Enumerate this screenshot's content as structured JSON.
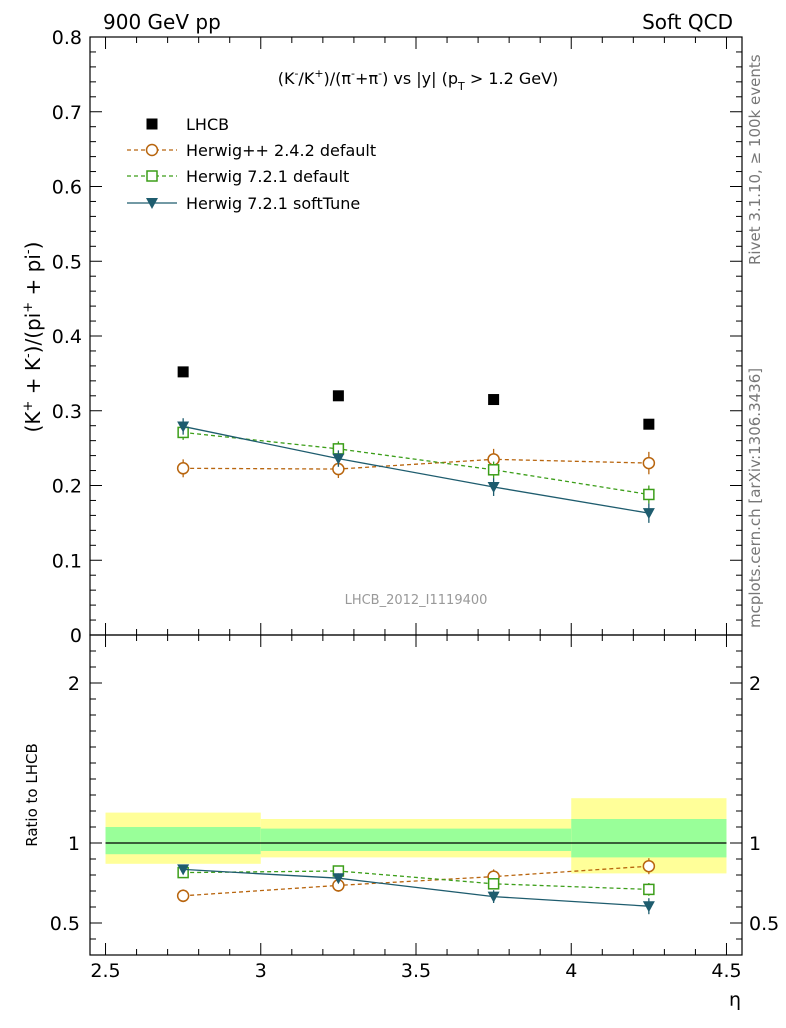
{
  "header": {
    "left": "900 GeV pp",
    "right": "Soft QCD"
  },
  "side_labels": {
    "rivet": "Rivet 3.1.10, ≥ 100k events",
    "mcplots": "mcplots.cern.ch [arXiv:1306.3436]"
  },
  "analysis_id": "LHCB_2012_I1119400",
  "colors": {
    "data": "#000000",
    "herwigpp": "#b8650e",
    "herwig721": "#3c9e19",
    "softtune": "#1e5c6e",
    "band_inner": "#99ff99",
    "band_outer": "#ffff99"
  },
  "chart_data": [
    {
      "type": "scatter",
      "panel": "main",
      "title_parts": {
        "a": "(K",
        "a_sup": "-",
        "b": "/K",
        "b_sup": "+",
        "c": ")/(π",
        "c_sup": "-",
        "d": "+π",
        "d_sup": "-",
        "e": ") vs |y| (p",
        "e_sub": "T",
        "f": " > 1.2 GeV)"
      },
      "ylabel_parts": {
        "a": "(K",
        "a_sup": "+",
        "b": " + K",
        "b_sup": "-",
        "c": ")/(pi",
        "c_sup": "+",
        "d": " + pi",
        "d_sup": "-",
        "e": ")"
      },
      "xlim": [
        2.45,
        4.55
      ],
      "ylim": [
        0,
        0.8
      ],
      "yticks": [
        "0",
        "0.1",
        "0.2",
        "0.3",
        "0.4",
        "0.5",
        "0.6",
        "0.7",
        "0.8"
      ],
      "x": [
        2.75,
        3.25,
        3.75,
        4.25
      ],
      "series": [
        {
          "name": "LHCB",
          "key": "data",
          "marker": "square-filled",
          "values": [
            0.352,
            0.32,
            0.315,
            0.282
          ],
          "errors": [
            0.004,
            0.004,
            0.004,
            0.004
          ]
        },
        {
          "name": "Herwig++ 2.4.2 default",
          "key": "herwigpp",
          "marker": "circle-open",
          "line": "dashed",
          "values": [
            0.223,
            0.222,
            0.235,
            0.23
          ],
          "errors": [
            0.012,
            0.012,
            0.014,
            0.015
          ]
        },
        {
          "name": "Herwig 7.2.1 default",
          "key": "herwig721",
          "marker": "square-open",
          "line": "dashed",
          "values": [
            0.271,
            0.249,
            0.221,
            0.188
          ],
          "errors": [
            0.01,
            0.01,
            0.011,
            0.012
          ]
        },
        {
          "name": "Herwig 7.2.1 softTune",
          "key": "softtune",
          "marker": "triangle-down-filled",
          "line": "solid",
          "values": [
            0.279,
            0.236,
            0.198,
            0.163
          ],
          "errors": [
            0.011,
            0.011,
            0.012,
            0.013
          ]
        }
      ]
    },
    {
      "type": "scatter",
      "panel": "ratio",
      "ylabel": "Ratio to LHCB",
      "xlabel": "η",
      "xlim": [
        2.45,
        4.55
      ],
      "ylim": [
        0.3,
        2.3
      ],
      "yticks": [
        "0.5",
        "1",
        "2"
      ],
      "xticks": [
        "2.5",
        "3",
        "3.5",
        "4",
        "4.5"
      ],
      "x": [
        2.75,
        3.25,
        3.75,
        4.25
      ],
      "bands": [
        {
          "x0": 2.5,
          "x1": 3.0,
          "inner": [
            0.93,
            1.1
          ],
          "outer": [
            0.87,
            1.19
          ]
        },
        {
          "x0": 3.0,
          "x1": 4.0,
          "inner": [
            0.95,
            1.09
          ],
          "outer": [
            0.91,
            1.15
          ]
        },
        {
          "x0": 4.0,
          "x1": 4.5,
          "inner": [
            0.91,
            1.15
          ],
          "outer": [
            0.81,
            1.28
          ]
        }
      ],
      "series": [
        {
          "name": "Herwig++ 2.4.2 default",
          "key": "herwigpp",
          "marker": "circle-open",
          "line": "dashed",
          "values": [
            0.67,
            0.735,
            0.79,
            0.855
          ],
          "errors": [
            0.04,
            0.04,
            0.045,
            0.05
          ]
        },
        {
          "name": "Herwig 7.2.1 default",
          "key": "herwig721",
          "marker": "square-open",
          "line": "dashed",
          "values": [
            0.815,
            0.825,
            0.745,
            0.71
          ],
          "errors": [
            0.03,
            0.03,
            0.035,
            0.04
          ]
        },
        {
          "name": "Herwig 7.2.1 softTune",
          "key": "softtune",
          "marker": "triangle-down-filled",
          "line": "solid",
          "values": [
            0.835,
            0.78,
            0.665,
            0.605
          ],
          "errors": [
            0.03,
            0.03,
            0.04,
            0.05
          ]
        }
      ]
    }
  ]
}
